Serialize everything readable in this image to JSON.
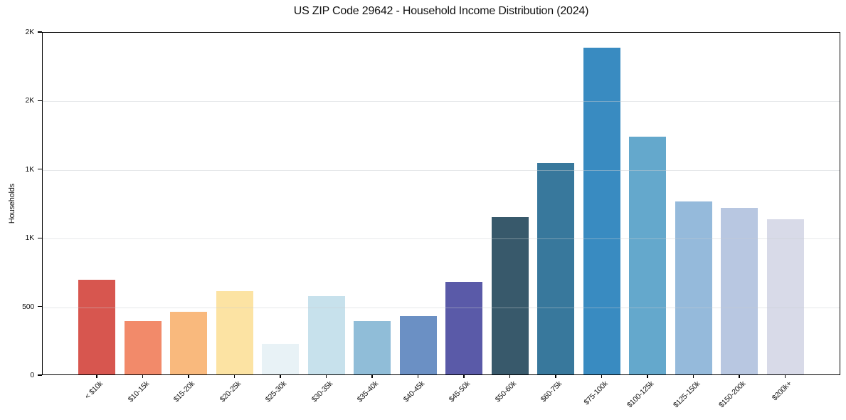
{
  "chart_data": {
    "type": "bar",
    "title": "US ZIP Code 29642 - Household Income Distribution (2024)",
    "xlabel": "",
    "ylabel": "Households",
    "categories": [
      "< $10k",
      "$10-15k",
      "$15-20k",
      "$20-25k",
      "$25-30k",
      "$30-35k",
      "$35-40k",
      "$40-45k",
      "$45-50k",
      "$50-60k",
      "$60-75k",
      "$75-100k",
      "$100-125k",
      "$125-150k",
      "$150-200k",
      "$200k+"
    ],
    "values": [
      690,
      390,
      455,
      605,
      225,
      570,
      390,
      425,
      675,
      1145,
      1540,
      2380,
      1735,
      1260,
      1215,
      1130
    ],
    "bar_colors": [
      "#d7564f",
      "#f28a6a",
      "#f9b97d",
      "#fce3a3",
      "#e8f2f6",
      "#c7e1ec",
      "#90bdd8",
      "#6b90c4",
      "#5a5aa8",
      "#38596b",
      "#38789c",
      "#398bc1",
      "#64a8cc",
      "#95badb",
      "#b8c7e1",
      "#d8dae8"
    ],
    "ylim": [
      0,
      2500
    ],
    "yticks": [
      {
        "value": 0,
        "label": "0"
      },
      {
        "value": 500,
        "label": "500"
      },
      {
        "value": 1000,
        "label": "1K"
      },
      {
        "value": 1500,
        "label": "1K"
      },
      {
        "value": 2000,
        "label": "2K"
      },
      {
        "value": 2500,
        "label": "2K"
      }
    ],
    "grid": "horizontal",
    "legend": "none",
    "axis_color": "#000000",
    "grid_color": "#e8e8e8",
    "background": "#ffffff"
  }
}
